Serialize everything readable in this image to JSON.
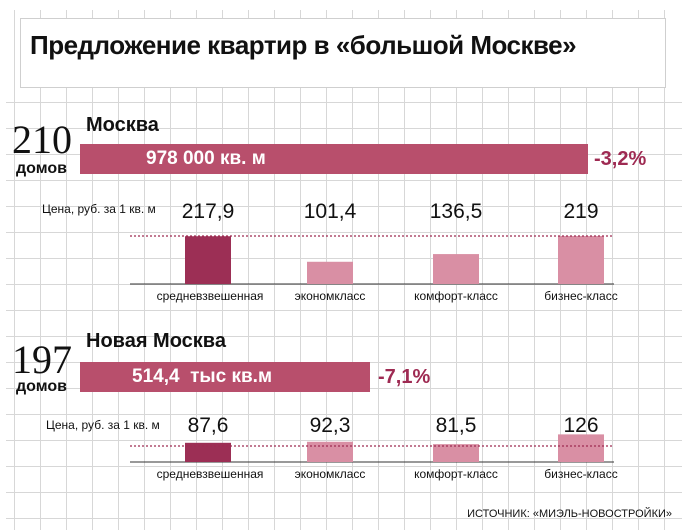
{
  "title": "Предложение квартир в «большой Москве»",
  "moscow": {
    "houses_count": "210",
    "houses_word": "домов",
    "name": "Москва",
    "supply_value": "978 000",
    "supply_unit": "кв. м",
    "change": "-3,2%",
    "price_caption": "Цена, руб. за 1 кв. м"
  },
  "new_moscow": {
    "houses_count": "197",
    "houses_word": "домов",
    "name": "Новая Москва",
    "supply_value": "514,4",
    "supply_unit": "тыс кв.м",
    "change": "-7,1%",
    "price_caption": "Цена, руб. за 1 кв. м"
  },
  "source": "ИСТОЧНИК: «МИЭЛЬ-НОВОСТРОЙКИ»",
  "colors": {
    "main_bar": "#b84f6c",
    "dark_bar": "#9c2f55",
    "light_bar": "#d98fa4",
    "change_text": "#9e2a52"
  },
  "chart_data": [
    {
      "type": "bar",
      "title": "Москва",
      "ylabel": "Цена, руб. за 1 кв. м",
      "categories": [
        "средневзвешенная",
        "экономкласс",
        "комфорт-класс",
        "бизнес-класс"
      ],
      "values": [
        217.9,
        101.4,
        136.5,
        219
      ],
      "value_labels": [
        "217,9",
        "101,4",
        "136,5",
        "219"
      ],
      "supply": 978000,
      "ylim": [
        0,
        222
      ]
    },
    {
      "type": "bar",
      "title": "Новая Москва",
      "ylabel": "Цена, руб. за 1 кв. м",
      "categories": [
        "средневзвешенная",
        "экономкласс",
        "комфорт-класс",
        "бизнес-класс"
      ],
      "values": [
        87.6,
        92.3,
        81.5,
        126
      ],
      "value_labels": [
        "87,6",
        "92,3",
        "81,5",
        "126"
      ],
      "supply": 514.4,
      "ylim": [
        0,
        222
      ]
    }
  ]
}
